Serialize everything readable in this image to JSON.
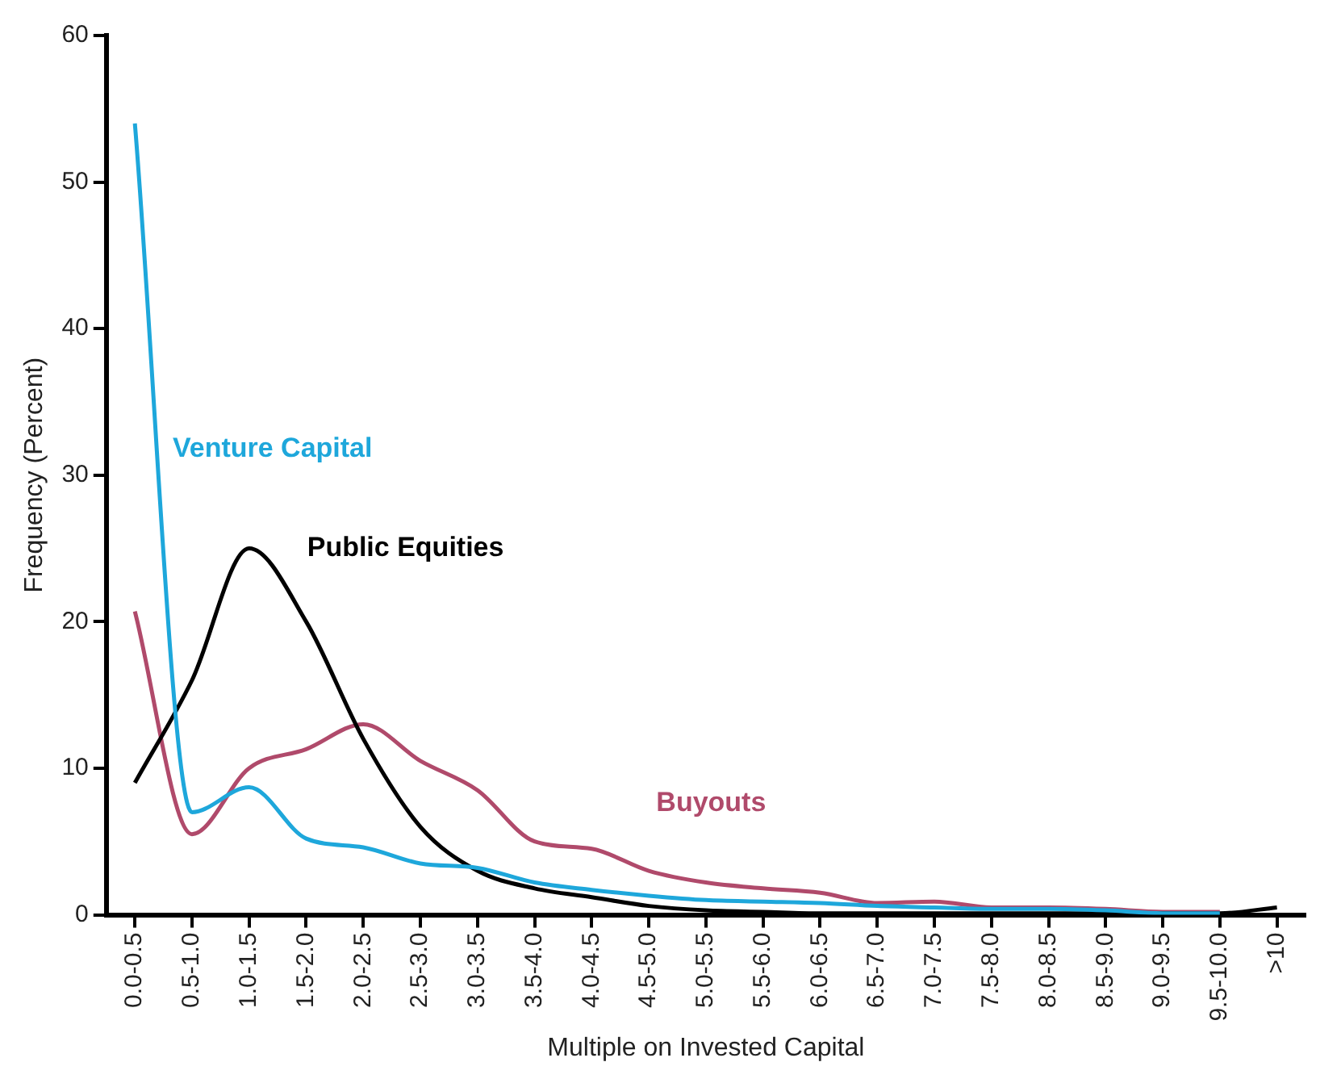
{
  "chart_data": {
    "type": "line",
    "xlabel": "Multiple on Invested Capital",
    "ylabel": "Frequency (Percent)",
    "categories": [
      "0.0-0.5",
      "0.5-1.0",
      "1.0-1.5",
      "1.5-2.0",
      "2.0-2.5",
      "2.5-3.0",
      "3.0-3.5",
      "3.5-4.0",
      "4.0-4.5",
      "4.5-5.0",
      "5.0-5.5",
      "5.5-6.0",
      "6.0-6.5",
      "6.5-7.0",
      "7.0-7.5",
      "7.5-8.0",
      "8.0-8.5",
      "8.5-9.0",
      "9.0-9.5",
      "9.5-10.0",
      ">10"
    ],
    "series": [
      {
        "name": "Venture Capital",
        "color": "#1ea7db",
        "values": [
          54,
          7,
          8.7,
          5.2,
          4.6,
          3.5,
          3.2,
          2.2,
          1.7,
          1.3,
          1.0,
          0.9,
          0.8,
          0.6,
          0.5,
          0.4,
          0.4,
          0.3,
          0.1,
          0.1,
          null
        ]
      },
      {
        "name": "Public Equities",
        "color": "#000000",
        "values": [
          9,
          16,
          25,
          20,
          12,
          6,
          3,
          1.8,
          1.2,
          0.6,
          0.3,
          0.2,
          0.1,
          0.1,
          0.1,
          0.1,
          0.1,
          0.1,
          0.1,
          0.1,
          0.5
        ]
      },
      {
        "name": "Buyouts",
        "color": "#b04a6b",
        "values": [
          20.7,
          5.5,
          10,
          11.3,
          13,
          10.5,
          8.5,
          5,
          4.5,
          3,
          2.2,
          1.8,
          1.5,
          0.8,
          0.9,
          0.5,
          0.5,
          0.4,
          0.2,
          0.2,
          null
        ]
      }
    ],
    "ylim": [
      0,
      60
    ],
    "yticks": [
      0,
      10,
      20,
      30,
      40,
      50,
      60
    ],
    "grid": false,
    "legend": false,
    "marker": "none",
    "line_style": "solid"
  }
}
